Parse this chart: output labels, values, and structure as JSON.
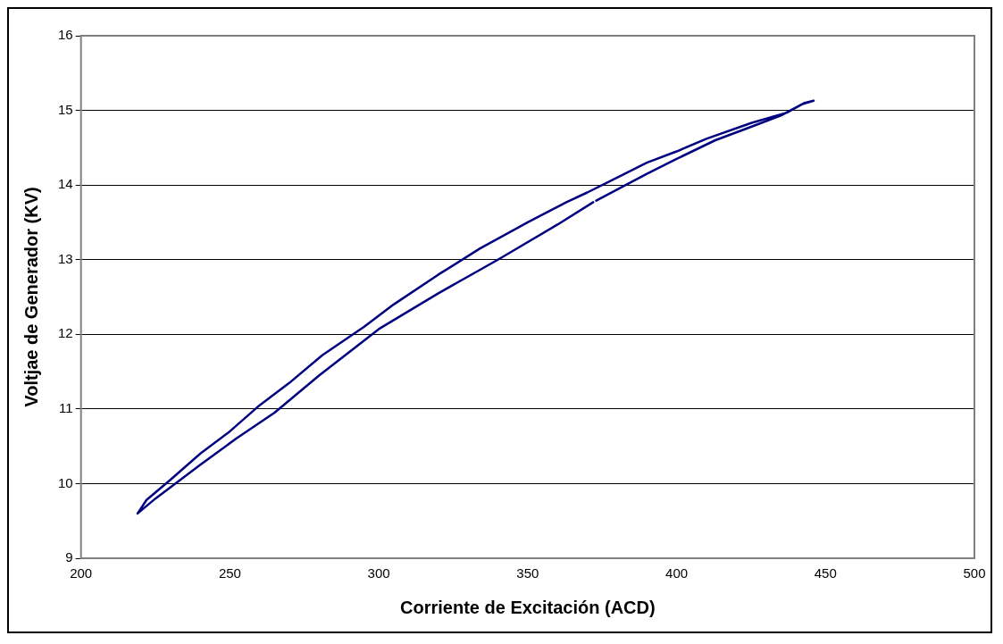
{
  "chart_data": {
    "type": "line",
    "xlabel": "Corriente de Excitación (ACD)",
    "ylabel": "Voltjae de Generador (KV)",
    "xlim": [
      200,
      500
    ],
    "xticks": [
      200,
      250,
      300,
      350,
      400,
      450,
      500
    ],
    "ylim": [
      9,
      16
    ],
    "yticks": [
      9,
      10,
      11,
      12,
      13,
      14,
      15,
      16
    ],
    "grid": "y",
    "legend": false,
    "marker": "none",
    "line_style": "solid",
    "series": [
      {
        "color": "#000080",
        "x": [
          219,
          225,
          240,
          252,
          265,
          280,
          300,
          320,
          340,
          360,
          372,
          372.5,
          373,
          390,
          400,
          413,
          425,
          435,
          442,
          446,
          443,
          437,
          425,
          410,
          400,
          390,
          380,
          370,
          363,
          350,
          334,
          320,
          305,
          295,
          281,
          270,
          260,
          250,
          240,
          230,
          222,
          219
        ],
        "values": [
          9.6,
          9.8,
          10.25,
          10.6,
          10.95,
          11.45,
          12.07,
          12.55,
          13.0,
          13.47,
          13.77,
          null,
          13.79,
          14.15,
          14.35,
          14.6,
          14.78,
          14.93,
          15.08,
          15.13,
          15.1,
          14.97,
          14.83,
          14.62,
          14.45,
          14.3,
          14.1,
          13.9,
          13.77,
          13.5,
          13.15,
          12.8,
          12.4,
          12.1,
          11.72,
          11.35,
          11.05,
          10.7,
          10.4,
          10.05,
          9.78,
          9.6
        ]
      }
    ]
  }
}
